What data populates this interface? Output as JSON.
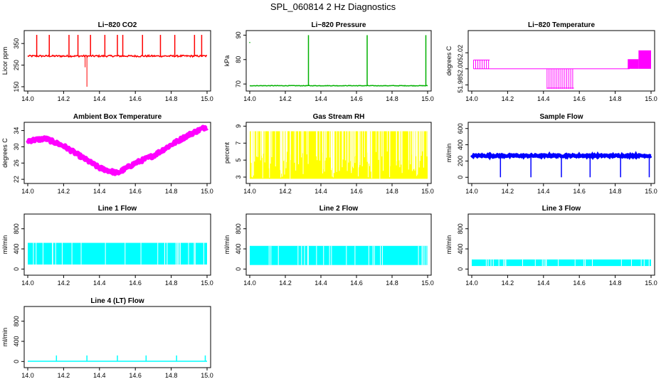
{
  "title": "SPL_060814  2 Hz Diagnostics",
  "chart_data": [
    {
      "id": "co2",
      "type": "line",
      "title": "Li−820 CO2",
      "ylabel": "Licor ppm",
      "xlim": [
        14.0,
        15.0
      ],
      "ylim": [
        140,
        400
      ],
      "yticks": [
        "150",
        "250",
        "350"
      ],
      "ytick_values": [
        150,
        250,
        350
      ],
      "xticks": [
        "14.0",
        "14.2",
        "14.4",
        "14.6",
        "14.8",
        "15.0"
      ],
      "xtick_values": [
        14.0,
        14.2,
        14.4,
        14.6,
        14.8,
        15.0
      ],
      "color": "#ff0000",
      "baseline": 292,
      "noise": 8,
      "spikes_up": [
        14.05,
        14.12,
        14.23,
        14.28,
        14.35,
        14.43,
        14.5,
        14.53,
        14.64,
        14.74,
        14.82,
        14.93,
        14.97
      ],
      "spike_top": 390,
      "spikes_down": [
        {
          "x": 14.33,
          "y": 150
        },
        {
          "x": 14.32,
          "y": 240
        }
      ]
    },
    {
      "id": "pressure",
      "type": "line",
      "title": "Li−820 Pressure",
      "ylabel": "kPa",
      "xlim": [
        14.0,
        15.0
      ],
      "ylim": [
        68,
        91
      ],
      "yticks": [
        "70",
        "80",
        "90"
      ],
      "ytick_values": [
        70,
        80,
        90
      ],
      "xticks": [
        "14.0",
        "14.2",
        "14.4",
        "14.6",
        "14.8",
        "15.0"
      ],
      "xtick_values": [
        14.0,
        14.2,
        14.4,
        14.6,
        14.8,
        15.0
      ],
      "color": "#00b000",
      "baseline": 69.3,
      "noise": 0.2,
      "spikes_up": [
        14.33,
        14.66,
        14.99
      ],
      "spike_top": 90,
      "outlier": {
        "x": 14.0,
        "y": 87
      }
    },
    {
      "id": "temperature",
      "type": "line",
      "title": "Li−820 Temperature",
      "ylabel": "degrees C",
      "xlim": [
        14.0,
        15.0
      ],
      "ylim": [
        51.975,
        52.045
      ],
      "yticks": [
        "51.98",
        "52.00",
        "52.02"
      ],
      "ytick_values": [
        51.98,
        52.0,
        52.02
      ],
      "xticks": [
        "14.0",
        "14.2",
        "14.4",
        "14.6",
        "14.8",
        "15.0"
      ],
      "xtick_values": [
        14.0,
        14.2,
        14.4,
        14.6,
        14.8,
        15.0
      ],
      "color": "#ff00ff",
      "baseline": 52.0
    },
    {
      "id": "ambient",
      "type": "line",
      "title": "Ambient Box Temperature",
      "ylabel": "degrees C",
      "xlim": [
        14.0,
        15.0
      ],
      "ylim": [
        21.5,
        35.5
      ],
      "yticks": [
        "22",
        "26",
        "30",
        "34"
      ],
      "ytick_values": [
        22,
        26,
        30,
        34
      ],
      "xticks": [
        "14.0",
        "14.2",
        "14.4",
        "14.6",
        "14.8",
        "15.0"
      ],
      "xtick_values": [
        14.0,
        14.2,
        14.4,
        14.6,
        14.8,
        15.0
      ],
      "color": "#ff00ff",
      "x": [
        14.0,
        14.1,
        14.2,
        14.3,
        14.4,
        14.5,
        14.6,
        14.7,
        14.8,
        14.9,
        15.0
      ],
      "y": [
        31.5,
        32.0,
        30.2,
        27.5,
        24.8,
        23.5,
        26.0,
        27.8,
        30.5,
        33.0,
        35.0
      ]
    },
    {
      "id": "rh",
      "type": "line",
      "title": "Gas Stream RH",
      "ylabel": "percent",
      "xlim": [
        14.0,
        15.0
      ],
      "ylim": [
        2.5,
        9.2
      ],
      "yticks": [
        "3",
        "5",
        "7",
        "9"
      ],
      "ytick_values": [
        3,
        5,
        7,
        9
      ],
      "xticks": [
        "14.0",
        "14.2",
        "14.4",
        "14.6",
        "14.8",
        "15.0"
      ],
      "xtick_values": [
        14.0,
        14.2,
        14.4,
        14.6,
        14.8,
        15.0
      ],
      "color": "#ffff00",
      "upper": 8.4,
      "lower": 2.8
    },
    {
      "id": "sample",
      "type": "line",
      "title": "Sample Flow",
      "ylabel": "ml/min",
      "xlim": [
        14.0,
        15.0
      ],
      "ylim": [
        -50,
        650
      ],
      "yticks": [
        "0",
        "200",
        "400",
        "600"
      ],
      "ytick_values": [
        0,
        200,
        400,
        600
      ],
      "xticks": [
        "14.0",
        "14.2",
        "14.4",
        "14.6",
        "14.8",
        "15.0"
      ],
      "xtick_values": [
        14.0,
        14.2,
        14.4,
        14.6,
        14.8,
        15.0
      ],
      "color": "#0000ff",
      "baseline": 265,
      "noise": 20,
      "dips": [
        14.16,
        14.33,
        14.5,
        14.66,
        14.83,
        14.99
      ]
    },
    {
      "id": "line1",
      "type": "line",
      "title": "Line 1 Flow",
      "ylabel": "ml/min",
      "xlim": [
        14.0,
        15.0
      ],
      "ylim": [
        -80,
        1050
      ],
      "yticks": [
        "0",
        "400",
        "800"
      ],
      "ytick_values": [
        0,
        400,
        800
      ],
      "xticks": [
        "14.0",
        "14.2",
        "14.4",
        "14.6",
        "14.8",
        "15.0"
      ],
      "xtick_values": [
        14.0,
        14.2,
        14.4,
        14.6,
        14.8,
        15.0
      ],
      "color": "#00ffff",
      "upper": 520,
      "lower": 90
    },
    {
      "id": "line2",
      "type": "line",
      "title": "Line 2 Flow",
      "ylabel": "ml/min",
      "xlim": [
        14.0,
        15.0
      ],
      "ylim": [
        -80,
        1050
      ],
      "yticks": [
        "0",
        "400",
        "800"
      ],
      "ytick_values": [
        0,
        400,
        800
      ],
      "xticks": [
        "14.0",
        "14.2",
        "14.4",
        "14.6",
        "14.8",
        "15.0"
      ],
      "xtick_values": [
        14.0,
        14.2,
        14.4,
        14.6,
        14.8,
        15.0
      ],
      "color": "#00ffff",
      "upper": 460,
      "lower": 80
    },
    {
      "id": "line3",
      "type": "line",
      "title": "Line 3 Flow",
      "ylabel": "ml/min",
      "xlim": [
        14.0,
        15.0
      ],
      "ylim": [
        -80,
        1050
      ],
      "yticks": [
        "0",
        "400",
        "800"
      ],
      "ytick_values": [
        0,
        400,
        800
      ],
      "xticks": [
        "14.0",
        "14.2",
        "14.4",
        "14.6",
        "14.8",
        "15.0"
      ],
      "xtick_values": [
        14.0,
        14.2,
        14.4,
        14.6,
        14.8,
        15.0
      ],
      "color": "#00ffff",
      "upper": 190,
      "lower": 60
    },
    {
      "id": "line4",
      "type": "line",
      "title": "Line 4 (LT) Flow",
      "ylabel": "ml/min",
      "xlim": [
        14.0,
        15.0
      ],
      "ylim": [
        -80,
        1050
      ],
      "yticks": [
        "0",
        "400",
        "800"
      ],
      "ytick_values": [
        0,
        400,
        800
      ],
      "xticks": [
        "14.0",
        "14.2",
        "14.4",
        "14.6",
        "14.8",
        "15.0"
      ],
      "xtick_values": [
        14.0,
        14.2,
        14.4,
        14.6,
        14.8,
        15.0
      ],
      "color": "#00ffff",
      "baseline": 5,
      "spikes_up": [
        14.16,
        14.33,
        14.5,
        14.66,
        14.83,
        14.99
      ],
      "spike_top": 120
    }
  ]
}
